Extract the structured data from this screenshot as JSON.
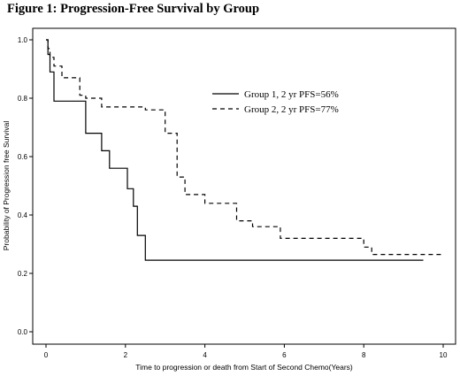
{
  "figure_title": "Figure 1: Progression-Free Survival by Group",
  "chart_data": {
    "type": "line",
    "title": "Figure 1: Progression-Free Survival by Group",
    "xlabel": "Time to progression or death from Start of Second Chemo(Years)",
    "ylabel": "Probability of Progression free Survival",
    "xlim": [
      0,
      10
    ],
    "ylim": [
      0,
      1.0
    ],
    "x_ticks": [
      "0",
      "2",
      "4",
      "6",
      "8",
      "10"
    ],
    "y_ticks": [
      "0.0",
      "0.2",
      "0.4",
      "0.6",
      "0.8",
      "1.0"
    ],
    "legend_placement": "top-right",
    "grid": false,
    "series": [
      {
        "name": "Group 1, 2 yr PFS=56%",
        "style": "solid",
        "x": [
          0,
          0.05,
          0.1,
          0.2,
          0.5,
          0.65,
          1.0,
          1.4,
          1.6,
          2.05,
          2.2,
          2.3,
          2.5,
          9.5
        ],
        "y": [
          1.0,
          0.95,
          0.89,
          0.79,
          0.79,
          0.79,
          0.68,
          0.62,
          0.56,
          0.49,
          0.43,
          0.33,
          0.245,
          0.245
        ]
      },
      {
        "name": "Group 2, 2 yr PFS=77%",
        "style": "dashed",
        "x": [
          0,
          0.05,
          0.1,
          0.2,
          0.4,
          0.85,
          1.0,
          1.4,
          2.3,
          2.5,
          3.0,
          3.3,
          3.5,
          4.0,
          4.8,
          5.2,
          5.9,
          8.0,
          8.2,
          10.0
        ],
        "y": [
          1.0,
          0.97,
          0.94,
          0.91,
          0.87,
          0.81,
          0.8,
          0.77,
          0.77,
          0.76,
          0.68,
          0.53,
          0.47,
          0.44,
          0.38,
          0.36,
          0.32,
          0.29,
          0.265,
          0.265
        ]
      }
    ]
  }
}
